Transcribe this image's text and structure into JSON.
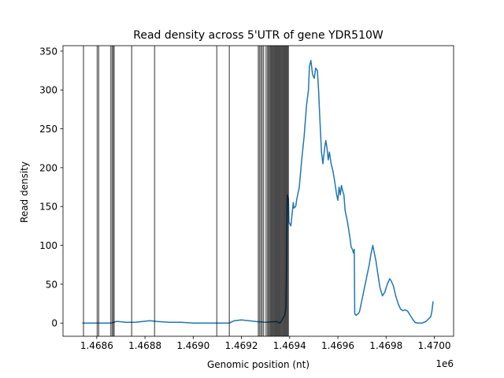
{
  "chart_data": {
    "type": "line",
    "title": "Read density across 5'UTR of gene YDR510W",
    "xlabel": "Genomic position (nt)",
    "ylabel": "Read density",
    "x_offset_label": "1e6",
    "xlim": [
      1468460,
      1470080
    ],
    "ylim": [
      -17,
      357
    ],
    "xticks": [
      1468600,
      1468800,
      1469000,
      1469200,
      1469400,
      1469600,
      1469800,
      1470000
    ],
    "xtick_labels": [
      "1.4686",
      "1.4688",
      "1.4690",
      "1.4692",
      "1.4694",
      "1.4696",
      "1.4698",
      "1.4700"
    ],
    "yticks": [
      0,
      50,
      100,
      150,
      200,
      250,
      300,
      350
    ],
    "ytick_labels": [
      "0",
      "50",
      "100",
      "150",
      "200",
      "250",
      "300",
      "350"
    ],
    "grid": false,
    "series": [
      {
        "color": "#1f77b4",
        "points": [
          [
            1468540,
            0
          ],
          [
            1468600,
            0
          ],
          [
            1468660,
            0
          ],
          [
            1468680,
            2
          ],
          [
            1468690,
            2
          ],
          [
            1468720,
            1
          ],
          [
            1468760,
            1
          ],
          [
            1468790,
            2
          ],
          [
            1468820,
            3
          ],
          [
            1468850,
            2
          ],
          [
            1468900,
            1
          ],
          [
            1468950,
            1
          ],
          [
            1469000,
            0
          ],
          [
            1469080,
            0
          ],
          [
            1469150,
            0
          ],
          [
            1469170,
            3
          ],
          [
            1469200,
            4
          ],
          [
            1469230,
            3
          ],
          [
            1469260,
            2
          ],
          [
            1469300,
            1
          ],
          [
            1469345,
            2
          ],
          [
            1469360,
            0
          ],
          [
            1469380,
            10
          ],
          [
            1469385,
            20
          ],
          [
            1469390,
            165
          ],
          [
            1469395,
            160
          ],
          [
            1469397,
            130
          ],
          [
            1469400,
            128
          ],
          [
            1469405,
            125
          ],
          [
            1469410,
            140
          ],
          [
            1469415,
            155
          ],
          [
            1469418,
            148
          ],
          [
            1469425,
            150
          ],
          [
            1469430,
            160
          ],
          [
            1469440,
            175
          ],
          [
            1469450,
            210
          ],
          [
            1469460,
            240
          ],
          [
            1469470,
            280
          ],
          [
            1469478,
            300
          ],
          [
            1469482,
            330
          ],
          [
            1469488,
            338
          ],
          [
            1469495,
            320
          ],
          [
            1469502,
            315
          ],
          [
            1469508,
            328
          ],
          [
            1469515,
            325
          ],
          [
            1469520,
            300
          ],
          [
            1469525,
            265
          ],
          [
            1469532,
            220
          ],
          [
            1469538,
            205
          ],
          [
            1469545,
            225
          ],
          [
            1469550,
            235
          ],
          [
            1469555,
            225
          ],
          [
            1469560,
            210
          ],
          [
            1469565,
            220
          ],
          [
            1469572,
            205
          ],
          [
            1469580,
            195
          ],
          [
            1469588,
            180
          ],
          [
            1469595,
            165
          ],
          [
            1469600,
            158
          ],
          [
            1469605,
            175
          ],
          [
            1469610,
            165
          ],
          [
            1469615,
            177
          ],
          [
            1469620,
            170
          ],
          [
            1469625,
            165
          ],
          [
            1469630,
            145
          ],
          [
            1469640,
            130
          ],
          [
            1469650,
            110
          ],
          [
            1469655,
            98
          ],
          [
            1469660,
            95
          ],
          [
            1469665,
            90
          ],
          [
            1469668,
            95
          ],
          [
            1469670,
            12
          ],
          [
            1469675,
            10
          ],
          [
            1469685,
            12
          ],
          [
            1469690,
            15
          ],
          [
            1469700,
            30
          ],
          [
            1469710,
            45
          ],
          [
            1469720,
            60
          ],
          [
            1469730,
            75
          ],
          [
            1469738,
            90
          ],
          [
            1469745,
            100
          ],
          [
            1469750,
            92
          ],
          [
            1469758,
            80
          ],
          [
            1469765,
            65
          ],
          [
            1469775,
            45
          ],
          [
            1469785,
            35
          ],
          [
            1469795,
            40
          ],
          [
            1469805,
            50
          ],
          [
            1469815,
            57
          ],
          [
            1469820,
            55
          ],
          [
            1469830,
            48
          ],
          [
            1469840,
            35
          ],
          [
            1469850,
            25
          ],
          [
            1469860,
            18
          ],
          [
            1469870,
            16
          ],
          [
            1469880,
            17
          ],
          [
            1469890,
            15
          ],
          [
            1469900,
            10
          ],
          [
            1469910,
            5
          ],
          [
            1469920,
            1
          ],
          [
            1469930,
            0
          ],
          [
            1469950,
            0
          ],
          [
            1469965,
            2
          ],
          [
            1469975,
            5
          ],
          [
            1469985,
            8
          ],
          [
            1469990,
            15
          ],
          [
            1469995,
            28
          ]
        ]
      }
    ],
    "vlines": {
      "color": "#000000",
      "positions": [
        1468545,
        1468602,
        1468608,
        1468658,
        1468664,
        1468668,
        1468672,
        1468745,
        1468840,
        1469098,
        1469150,
        1469270,
        1469275,
        1469281,
        1469286,
        1469292,
        1469302,
        1469308,
        1469312,
        1469316,
        1469320,
        1469323,
        1469326,
        1469329,
        1469332,
        1469335,
        1469338,
        1469341,
        1469344,
        1469347,
        1469350,
        1469353,
        1469356,
        1469359,
        1469362,
        1469365,
        1469368,
        1469371,
        1469374,
        1469377,
        1469380,
        1469383,
        1469386,
        1469389,
        1469392,
        1469395
      ]
    }
  }
}
